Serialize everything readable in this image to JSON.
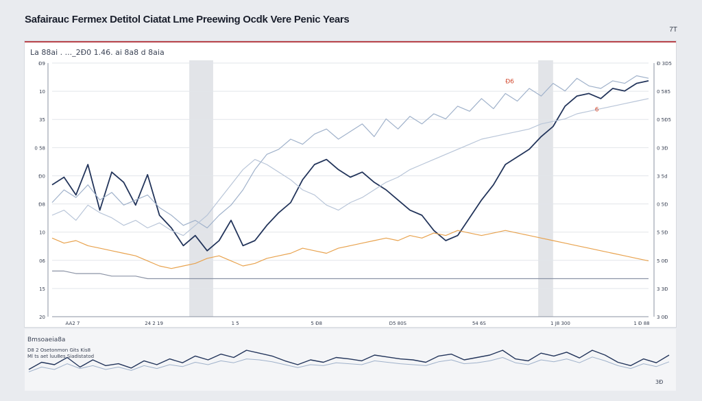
{
  "header": {
    "title": "Safairauc Fermex Detitol Ciatat Lme Preewing Ocdk Vere Penic Years",
    "corner_mark": "7T"
  },
  "colors": {
    "background": "#e9ebef",
    "panel": "#ffffff",
    "panel_border": "#b9434a",
    "navy": "#22345a",
    "light_blue": "#9fb1ca",
    "orange": "#e8a24d",
    "gray_band": "#d5d8de",
    "accent_red": "#d24a2f"
  },
  "chart_data": [
    {
      "type": "line",
      "title": "",
      "top_legend_text": "La 88ai . ..._2Ð0 1.46. ai 8a8 d 8aia",
      "x": [
        0,
        2,
        4,
        6,
        8,
        10,
        12,
        14,
        16,
        18,
        20,
        22,
        24,
        26,
        28,
        30,
        32,
        34,
        36,
        38,
        40,
        42,
        44,
        46,
        48,
        50,
        52,
        54,
        56,
        58,
        60,
        62,
        64,
        66,
        68,
        70,
        72,
        74,
        76,
        78,
        80,
        82,
        84,
        86,
        88,
        90,
        92,
        94,
        96,
        98,
        100
      ],
      "ylim": [
        0,
        100
      ],
      "x_tick_labels": [
        "AA2 7",
        "24 2 19",
        "1 5",
        "5 Ð8",
        "D5 80S",
        "54 6S",
        "1 J8 300",
        "1 Ð 88"
      ],
      "y_ticks_left": [
        "Ð9",
        "10",
        "35",
        "0 58",
        "Ð0",
        "Ð8",
        "10",
        "06",
        "15",
        "20"
      ],
      "y_ticks_right": [
        "Ð 3D5",
        "0 585",
        "0 5Ð5",
        "0 3Ð",
        "3 5d",
        "0 5Ð",
        "5 5Ð",
        "5 0Ð",
        "3 3Ð",
        "3 0Ð"
      ],
      "bands": [
        [
          23,
          27
        ],
        [
          81.5,
          84
        ]
      ],
      "markers": [
        {
          "label": "6",
          "x": 91,
          "y": 81
        },
        {
          "label": "Ð6",
          "x": 76,
          "y": 92
        }
      ],
      "series": [
        {
          "color": "#22345a",
          "values": [
            52,
            55,
            48,
            60,
            42,
            57,
            53,
            44,
            56,
            40,
            35,
            28,
            32,
            26,
            30,
            38,
            28,
            30,
            36,
            41,
            45,
            54,
            60,
            62,
            58,
            55,
            57,
            53,
            50,
            46,
            42,
            40,
            34,
            30,
            32,
            39,
            46,
            52,
            60,
            63,
            66,
            71,
            75,
            83,
            87,
            88,
            86,
            90,
            89,
            92,
            93
          ]
        },
        {
          "color": "#9fb1ca",
          "values": [
            45,
            50,
            47,
            52,
            46,
            49,
            44,
            46,
            48,
            43,
            40,
            36,
            38,
            35,
            40,
            44,
            50,
            58,
            64,
            66,
            70,
            68,
            72,
            74,
            70,
            73,
            76,
            71,
            78,
            74,
            79,
            76,
            80,
            78,
            83,
            81,
            86,
            82,
            88,
            85,
            90,
            87,
            92,
            89,
            94,
            91,
            90,
            93,
            92,
            95,
            94
          ]
        },
        {
          "color": "#b8c5d8",
          "values": [
            40,
            42,
            38,
            44,
            41,
            39,
            36,
            38,
            35,
            37,
            34,
            32,
            36,
            40,
            46,
            52,
            58,
            62,
            60,
            57,
            54,
            50,
            48,
            44,
            42,
            45,
            47,
            50,
            53,
            55,
            58,
            60,
            62,
            64,
            66,
            68,
            70,
            71,
            72,
            73,
            74,
            76,
            77,
            78,
            80,
            81,
            82,
            83,
            84,
            85,
            86
          ]
        },
        {
          "color": "#e8a24d",
          "values": [
            31,
            29,
            30,
            28,
            27,
            26,
            25,
            24,
            22,
            20,
            19,
            20,
            21,
            23,
            24,
            22,
            20,
            21,
            23,
            24,
            25,
            27,
            26,
            25,
            27,
            28,
            29,
            30,
            31,
            30,
            32,
            31,
            33,
            32,
            34,
            33,
            32,
            33,
            34,
            33,
            32,
            31,
            30,
            29,
            28,
            27,
            26,
            25,
            24,
            23,
            22
          ]
        },
        {
          "color": "#8b93a5",
          "values": [
            18,
            18,
            17,
            17,
            17,
            16,
            16,
            16,
            15,
            15,
            15,
            15,
            15,
            15,
            15,
            15,
            15,
            15,
            15,
            15,
            15,
            15,
            15,
            15,
            15,
            15,
            15,
            15,
            15,
            15,
            15,
            15,
            15,
            15,
            15,
            15,
            15,
            15,
            15,
            15,
            15,
            15,
            15,
            15,
            15,
            15,
            15,
            15,
            15,
            15,
            15
          ]
        }
      ]
    },
    {
      "type": "line",
      "title": "Bmsoaeia8a",
      "legend_lines": [
        "D8 2 Osetonmon Gits Kis8",
        "Ml ts aet luu8es Siadistatod"
      ],
      "annotation": "3Ð",
      "x": [
        0,
        2,
        4,
        6,
        8,
        10,
        12,
        14,
        16,
        18,
        20,
        22,
        24,
        26,
        28,
        30,
        32,
        34,
        36,
        38,
        40,
        42,
        44,
        46,
        48,
        50,
        52,
        54,
        56,
        58,
        60,
        62,
        64,
        66,
        68,
        70,
        72,
        74,
        76,
        78,
        80,
        82,
        84,
        86,
        88,
        90,
        92,
        94,
        96,
        98,
        100
      ],
      "ylim": [
        0,
        100
      ],
      "series": [
        {
          "color": "#22345a",
          "values": [
            30,
            45,
            40,
            55,
            35,
            50,
            38,
            42,
            33,
            48,
            40,
            52,
            44,
            58,
            50,
            62,
            55,
            70,
            64,
            58,
            48,
            40,
            50,
            45,
            55,
            52,
            48,
            60,
            56,
            52,
            50,
            45,
            58,
            62,
            50,
            55,
            60,
            70,
            52,
            48,
            64,
            58,
            66,
            54,
            70,
            60,
            45,
            38,
            52,
            44,
            60
          ]
        },
        {
          "color": "#9fb1ca",
          "values": [
            25,
            35,
            30,
            42,
            32,
            38,
            30,
            35,
            28,
            38,
            32,
            40,
            36,
            45,
            40,
            48,
            44,
            52,
            50,
            46,
            40,
            34,
            40,
            38,
            44,
            42,
            40,
            48,
            45,
            42,
            40,
            38,
            46,
            50,
            42,
            44,
            48,
            55,
            44,
            40,
            50,
            46,
            52,
            44,
            56,
            48,
            38,
            32,
            42,
            36,
            46
          ]
        }
      ]
    }
  ]
}
